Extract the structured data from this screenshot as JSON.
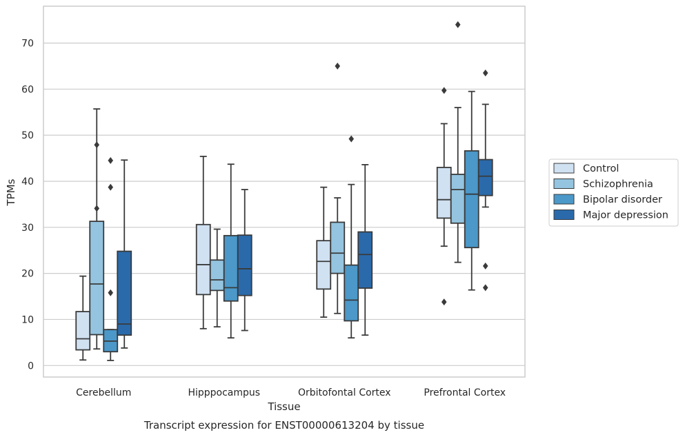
{
  "chart_data": {
    "type": "box",
    "caption": "Transcript expression for ENST00000613204 by tissue",
    "xlabel": "Tissue",
    "ylabel": "TPMs",
    "ylim": [
      -2.5,
      78
    ],
    "yticks": [
      0,
      10,
      20,
      30,
      40,
      50,
      60,
      70
    ],
    "grid": true,
    "legend_position": "right",
    "categories": [
      "Cerebellum",
      "Hipppocampus",
      "Orbitofontal Cortex",
      "Prefrontal Cortex"
    ],
    "series": [
      {
        "name": "Control",
        "color": "#d0e1f2",
        "boxes": [
          {
            "whisker_low": 1.2,
            "q1": 3.4,
            "median": 5.8,
            "q3": 11.7,
            "whisker_high": 19.4,
            "outliers": []
          },
          {
            "whisker_low": 8.0,
            "q1": 15.4,
            "median": 21.9,
            "q3": 30.6,
            "whisker_high": 45.4,
            "outliers": []
          },
          {
            "whisker_low": 10.5,
            "q1": 16.6,
            "median": 22.6,
            "q3": 27.1,
            "whisker_high": 38.7,
            "outliers": []
          },
          {
            "whisker_low": 25.9,
            "q1": 32.0,
            "median": 36.0,
            "q3": 43.0,
            "whisker_high": 52.5,
            "outliers": [
              13.8,
              59.7
            ]
          }
        ]
      },
      {
        "name": "Schizophrenia",
        "color": "#94c4df",
        "boxes": [
          {
            "whisker_low": 3.6,
            "q1": 6.7,
            "median": 17.7,
            "q3": 31.3,
            "whisker_high": 55.7,
            "outliers": [
              34.1,
              47.9
            ]
          },
          {
            "whisker_low": 8.4,
            "q1": 16.3,
            "median": 18.6,
            "q3": 22.9,
            "whisker_high": 29.6,
            "outliers": []
          },
          {
            "whisker_low": 11.3,
            "q1": 20.0,
            "median": 24.4,
            "q3": 31.1,
            "whisker_high": 36.4,
            "outliers": [
              65.0
            ]
          },
          {
            "whisker_low": 22.4,
            "q1": 30.9,
            "median": 38.2,
            "q3": 41.5,
            "whisker_high": 56.0,
            "outliers": [
              74.0
            ]
          }
        ]
      },
      {
        "name": "Bipolar disorder",
        "color": "#4b98c9",
        "boxes": [
          {
            "whisker_low": 1.1,
            "q1": 3.0,
            "median": 5.3,
            "q3": 7.8,
            "whisker_high": 7.8,
            "outliers": [
              15.8,
              38.7,
              44.5
            ]
          },
          {
            "whisker_low": 6.0,
            "q1": 14.0,
            "median": 16.9,
            "q3": 28.2,
            "whisker_high": 43.7,
            "outliers": []
          },
          {
            "whisker_low": 6.0,
            "q1": 9.7,
            "median": 14.2,
            "q3": 21.8,
            "whisker_high": 39.3,
            "outliers": [
              49.2
            ]
          },
          {
            "whisker_low": 16.4,
            "q1": 25.6,
            "median": 37.2,
            "q3": 46.6,
            "whisker_high": 59.5,
            "outliers": []
          }
        ]
      },
      {
        "name": "Major depression",
        "color": "#2a6aab",
        "boxes": [
          {
            "whisker_low": 3.8,
            "q1": 6.6,
            "median": 9.0,
            "q3": 24.8,
            "whisker_high": 44.6,
            "outliers": []
          },
          {
            "whisker_low": 7.6,
            "q1": 15.2,
            "median": 21.0,
            "q3": 28.3,
            "whisker_high": 38.2,
            "outliers": []
          },
          {
            "whisker_low": 6.6,
            "q1": 16.8,
            "median": 24.1,
            "q3": 29.0,
            "whisker_high": 43.6,
            "outliers": []
          },
          {
            "whisker_low": 34.4,
            "q1": 36.9,
            "median": 41.1,
            "q3": 44.7,
            "whisker_high": 56.7,
            "outliers": [
              16.9,
              21.6,
              63.5
            ]
          }
        ]
      }
    ]
  }
}
